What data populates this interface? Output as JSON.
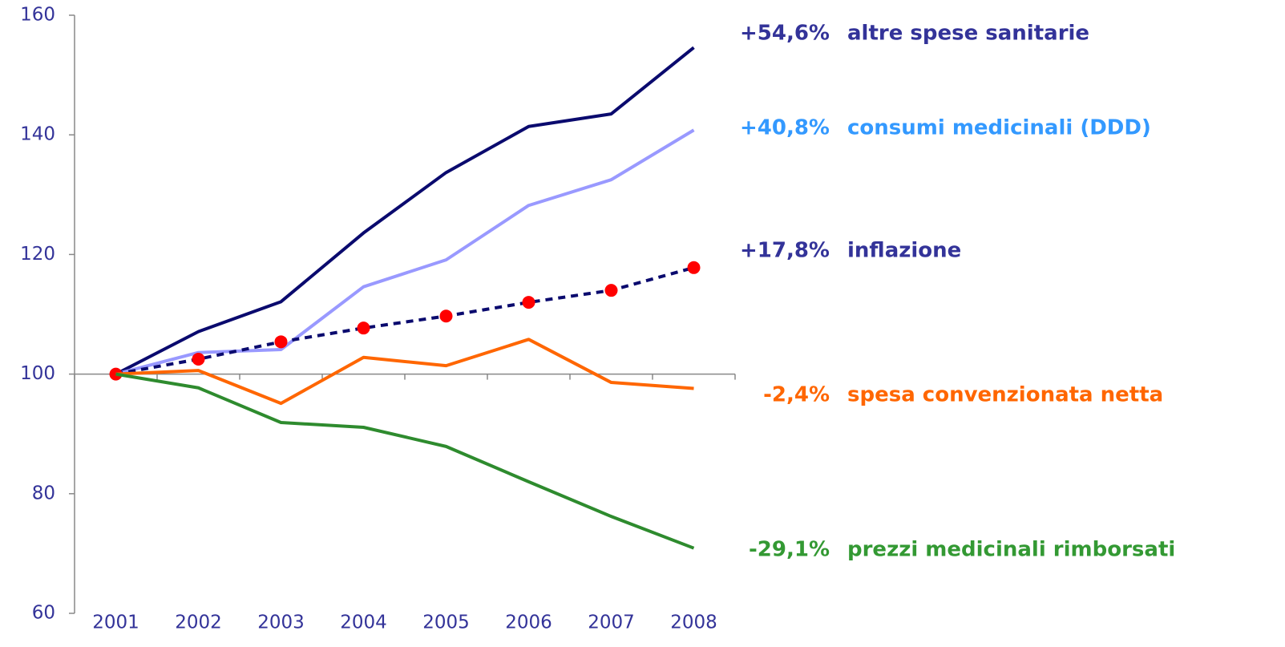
{
  "chart_data": {
    "type": "line",
    "categories": [
      "2001",
      "2002",
      "2003",
      "2004",
      "2005",
      "2006",
      "2007",
      "2008"
    ],
    "ylim": [
      60,
      160
    ],
    "yticks": [
      60,
      80,
      100,
      120,
      140,
      160
    ],
    "axis_color": "#333399",
    "series": [
      {
        "name": "altre spese sanitarie",
        "change_label": "+54,6%",
        "color": "#0a0a6e",
        "label_color": "#333399",
        "values": [
          100,
          107.1,
          112.1,
          123.6,
          133.7,
          141.4,
          143.5,
          154.6
        ]
      },
      {
        "name": "consumi medicinali (DDD)",
        "change_label": "+40,8%",
        "color": "#9999ff",
        "label_color": "#3399ff",
        "values": [
          100,
          103.6,
          104.1,
          114.6,
          119.1,
          128.2,
          132.5,
          140.8
        ]
      },
      {
        "name": "inflazione",
        "change_label": "+17,8%",
        "color": "#0a0a6e",
        "label_color": "#333399",
        "dashed": true,
        "marker_color": "#ff0000",
        "values": [
          100,
          102.5,
          105.4,
          107.7,
          109.7,
          112.0,
          114.0,
          117.8
        ]
      },
      {
        "name": "spesa convenzionata netta",
        "change_label": "-2,4%",
        "color": "#ff6600",
        "label_color": "#ff6600",
        "values": [
          100,
          100.6,
          95.1,
          102.8,
          101.4,
          105.8,
          98.6,
          97.6
        ]
      },
      {
        "name": "prezzi medicinali rimborsati",
        "change_label": "-29,1%",
        "color": "#2e8b2e",
        "label_color": "#339933",
        "values": [
          100,
          97.7,
          91.9,
          91.1,
          87.9,
          82.0,
          76.2,
          70.9
        ]
      }
    ]
  }
}
